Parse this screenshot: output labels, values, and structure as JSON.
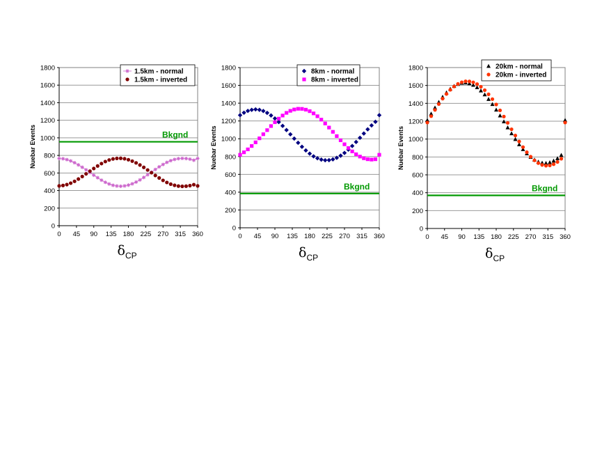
{
  "chart_data": [
    {
      "type": "scatter",
      "ylabel": "Nuebar Events",
      "xlabel_symbol": "δ",
      "xlabel_sub": "CP",
      "xlim": [
        0,
        360
      ],
      "ylim": [
        0,
        1800
      ],
      "xticks": [
        "0",
        "45",
        "90",
        "135",
        "180",
        "225",
        "270",
        "315",
        "360"
      ],
      "yticks": [
        "0",
        "200",
        "400",
        "600",
        "800",
        "1000",
        "1200",
        "1400",
        "1600",
        "1800"
      ],
      "grid": true,
      "legend_position": "top-right",
      "x": [
        0,
        10,
        20,
        30,
        40,
        50,
        60,
        70,
        80,
        90,
        100,
        110,
        120,
        130,
        140,
        150,
        160,
        170,
        180,
        190,
        200,
        210,
        220,
        230,
        240,
        250,
        260,
        270,
        280,
        290,
        300,
        310,
        320,
        330,
        340,
        350,
        360
      ],
      "series": [
        {
          "name": "1.5km - normal",
          "color": "#cc66cc",
          "marker": "star",
          "values": [
            765,
            762,
            752,
            737,
            717,
            692,
            665,
            636,
            605,
            575,
            546,
            518,
            494,
            475,
            460,
            452,
            449,
            453,
            462,
            477,
            497,
            521,
            549,
            580,
            610,
            640,
            670,
            697,
            721,
            740,
            754,
            763,
            766,
            764,
            757,
            745,
            765
          ]
        },
        {
          "name": "1.5km - inverted",
          "color": "#800000",
          "marker": "circle",
          "values": [
            453,
            458,
            468,
            484,
            505,
            531,
            560,
            590,
            621,
            651,
            680,
            707,
            730,
            748,
            760,
            766,
            767,
            762,
            751,
            735,
            715,
            691,
            664,
            634,
            603,
            572,
            543,
            516,
            492,
            473,
            460,
            451,
            448,
            450,
            456,
            467,
            453
          ]
        }
      ],
      "bkgnd": {
        "label": "Bkgnd",
        "value": 955,
        "color": "#009900"
      }
    },
    {
      "type": "scatter",
      "ylabel": "Nuebar Events",
      "xlabel_symbol": "δ",
      "xlabel_sub": "CP",
      "xlim": [
        0,
        360
      ],
      "ylim": [
        0,
        1800
      ],
      "xticks": [
        "0",
        "45",
        "90",
        "135",
        "180",
        "225",
        "270",
        "315",
        "360"
      ],
      "yticks": [
        "0",
        "200",
        "400",
        "600",
        "800",
        "1000",
        "1200",
        "1400",
        "1600",
        "1800"
      ],
      "grid": true,
      "legend_position": "top-right",
      "x": [
        0,
        10,
        20,
        30,
        40,
        50,
        60,
        70,
        80,
        90,
        100,
        110,
        120,
        130,
        140,
        150,
        160,
        170,
        180,
        190,
        200,
        210,
        220,
        230,
        240,
        250,
        260,
        270,
        280,
        290,
        300,
        310,
        320,
        330,
        340,
        350,
        360
      ],
      "series": [
        {
          "name": "8km - normal",
          "color": "#000080",
          "marker": "diamond",
          "values": [
            1265,
            1293,
            1313,
            1325,
            1330,
            1325,
            1312,
            1291,
            1262,
            1228,
            1188,
            1145,
            1098,
            1050,
            1002,
            955,
            910,
            869,
            833,
            803,
            781,
            766,
            759,
            760,
            769,
            786,
            810,
            841,
            878,
            919,
            964,
            1011,
            1059,
            1106,
            1150,
            1191,
            1265
          ]
        },
        {
          "name": "8km - inverted",
          "color": "#ff00ff",
          "marker": "square",
          "values": [
            820,
            848,
            881,
            919,
            960,
            1005,
            1051,
            1097,
            1143,
            1186,
            1226,
            1261,
            1291,
            1314,
            1329,
            1337,
            1336,
            1327,
            1310,
            1285,
            1253,
            1215,
            1172,
            1126,
            1078,
            1030,
            983,
            938,
            896,
            858,
            826,
            800,
            781,
            770,
            766,
            770,
            820
          ]
        }
      ],
      "bkgnd": {
        "label": "Bkgnd",
        "value": 385,
        "color": "#009900"
      }
    },
    {
      "type": "scatter",
      "ylabel": "Nuebar Events",
      "xlabel_symbol": "δ",
      "xlabel_sub": "CP",
      "xlim": [
        0,
        360
      ],
      "ylim": [
        0,
        1800
      ],
      "xticks": [
        "0",
        "45",
        "90",
        "135",
        "180",
        "225",
        "270",
        "315",
        "360"
      ],
      "yticks": [
        "0",
        "200",
        "400",
        "600",
        "800",
        "1000",
        "1200",
        "1400",
        "1600",
        "1800"
      ],
      "grid": true,
      "legend_position": "top-right",
      "x": [
        0,
        10,
        20,
        30,
        40,
        50,
        60,
        70,
        80,
        90,
        100,
        110,
        120,
        130,
        140,
        150,
        160,
        170,
        180,
        190,
        200,
        210,
        220,
        230,
        240,
        250,
        260,
        270,
        280,
        290,
        300,
        310,
        320,
        330,
        340,
        350,
        360
      ],
      "series": [
        {
          "name": "20km - normal",
          "color": "#000000",
          "marker": "triangle",
          "values": [
            1210,
            1282,
            1350,
            1413,
            1470,
            1519,
            1560,
            1592,
            1614,
            1627,
            1630,
            1622,
            1604,
            1577,
            1541,
            1497,
            1446,
            1389,
            1327,
            1262,
            1195,
            1128,
            1062,
            998,
            939,
            885,
            838,
            798,
            767,
            745,
            733,
            730,
            738,
            756,
            783,
            820,
            1210
          ]
        },
        {
          "name": "20km - inverted",
          "color": "#ff3300",
          "marker": "circle",
          "values": [
            1185,
            1256,
            1326,
            1392,
            1452,
            1505,
            1551,
            1588,
            1617,
            1636,
            1646,
            1645,
            1635,
            1615,
            1585,
            1547,
            1501,
            1447,
            1387,
            1321,
            1252,
            1181,
            1110,
            1040,
            973,
            910,
            853,
            803,
            762,
            731,
            711,
            702,
            705,
            719,
            744,
            780,
            1185
          ]
        }
      ],
      "bkgnd": {
        "label": "Bkgnd",
        "value": 370,
        "color": "#009900"
      }
    }
  ]
}
